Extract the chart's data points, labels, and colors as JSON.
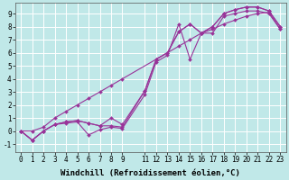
{
  "background_color": "#c0e8e8",
  "grid_color": "#ffffff",
  "line_color": "#993399",
  "line_width": 0.8,
  "marker": "D",
  "marker_size": 2.0,
  "xlabel": "Windchill (Refroidissement éolien,°C)",
  "xlabel_fontsize": 6.5,
  "tick_fontsize": 5.5,
  "xlim": [
    -0.5,
    23.5
  ],
  "ylim": [
    -1.6,
    9.8
  ],
  "xtick_positions": [
    0,
    1,
    2,
    3,
    4,
    5,
    6,
    7,
    8,
    9,
    11,
    12,
    13,
    14,
    15,
    16,
    17,
    18,
    19,
    20,
    21,
    22,
    23
  ],
  "xtick_labels": [
    "0",
    "1",
    "2",
    "3",
    "4",
    "5",
    "6",
    "7",
    "8",
    "9",
    "11",
    "12",
    "13",
    "14",
    "15",
    "16",
    "17",
    "18",
    "19",
    "20",
    "21",
    "22",
    "23"
  ],
  "ytick_positions": [
    -1,
    0,
    1,
    2,
    3,
    4,
    5,
    6,
    7,
    8,
    9
  ],
  "ytick_labels": [
    "-1",
    "0",
    "1",
    "2",
    "3",
    "4",
    "5",
    "6",
    "7",
    "8",
    "9"
  ],
  "series": [
    {
      "x": [
        0,
        1,
        2,
        3,
        4,
        5,
        6,
        7,
        8,
        9,
        11,
        12,
        13,
        14,
        15,
        16,
        17,
        18,
        19,
        20,
        21,
        22,
        23
      ],
      "y": [
        0,
        -0.7,
        0.0,
        0.5,
        0.6,
        0.7,
        -0.3,
        0.1,
        0.3,
        0.2,
        2.8,
        5.3,
        5.8,
        8.2,
        5.5,
        7.5,
        7.5,
        8.8,
        9.0,
        9.2,
        9.2,
        9.0,
        7.8
      ]
    },
    {
      "x": [
        0,
        1,
        2,
        3,
        4,
        5,
        6,
        7,
        8,
        9,
        11,
        12,
        13,
        14,
        15,
        16,
        17,
        18,
        19,
        20,
        21,
        22,
        23
      ],
      "y": [
        0,
        -0.7,
        0.0,
        0.5,
        0.7,
        0.8,
        0.6,
        0.4,
        0.4,
        0.3,
        3.1,
        5.5,
        6.0,
        7.6,
        8.2,
        7.5,
        8.0,
        9.0,
        9.3,
        9.5,
        9.5,
        9.2,
        8.0
      ]
    },
    {
      "x": [
        0,
        1,
        2,
        3,
        4,
        5,
        6,
        7,
        8,
        9,
        11,
        12,
        13,
        14,
        15,
        16,
        17,
        18,
        19,
        20,
        21,
        22,
        23
      ],
      "y": [
        0,
        -0.7,
        0.0,
        0.5,
        0.7,
        0.8,
        0.6,
        0.4,
        1.0,
        0.5,
        3.1,
        5.5,
        6.0,
        7.6,
        8.2,
        7.5,
        8.0,
        9.0,
        9.3,
        9.5,
        9.5,
        9.2,
        8.0
      ]
    },
    {
      "x": [
        0,
        1,
        2,
        3,
        4,
        5,
        6,
        7,
        8,
        9,
        14,
        15,
        16,
        17,
        18,
        19,
        20,
        21,
        22,
        23
      ],
      "y": [
        0,
        0.0,
        0.3,
        1.0,
        1.5,
        2.0,
        2.5,
        3.0,
        3.5,
        4.0,
        6.5,
        7.0,
        7.5,
        7.8,
        8.2,
        8.5,
        8.8,
        9.0,
        9.1,
        7.8
      ]
    }
  ]
}
